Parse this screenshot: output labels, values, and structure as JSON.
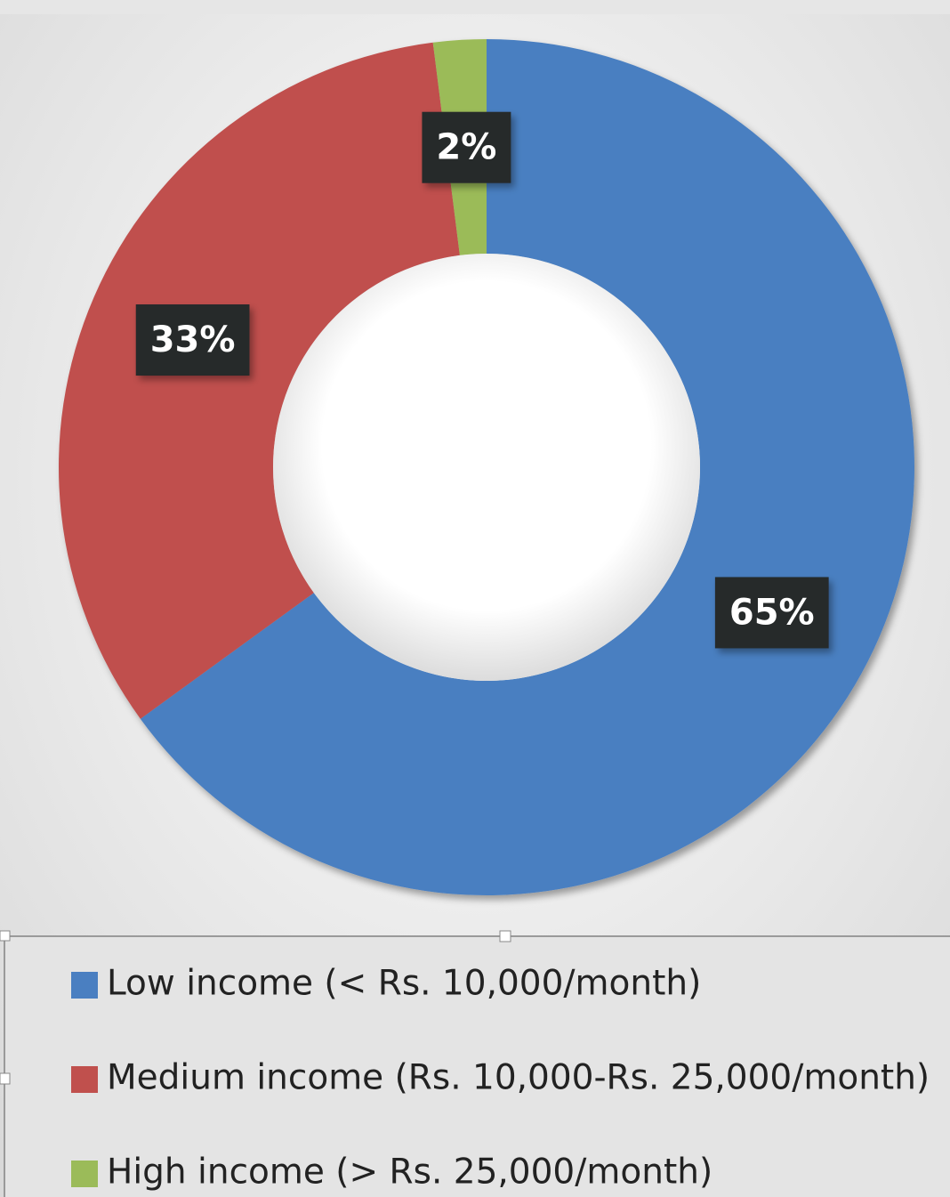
{
  "chart_data": {
    "type": "pie",
    "categories": [
      "Low income (< Rs. 10,000/month)",
      "Medium income  (Rs. 10,000-Rs. 25,000/month)",
      "High income (> Rs. 25,000/month)"
    ],
    "values": [
      65,
      33,
      2
    ],
    "value_labels": [
      "65%",
      "33%",
      "2%"
    ],
    "colors": [
      "#4a7fc1",
      "#c0504d",
      "#9bbb59"
    ]
  }
}
